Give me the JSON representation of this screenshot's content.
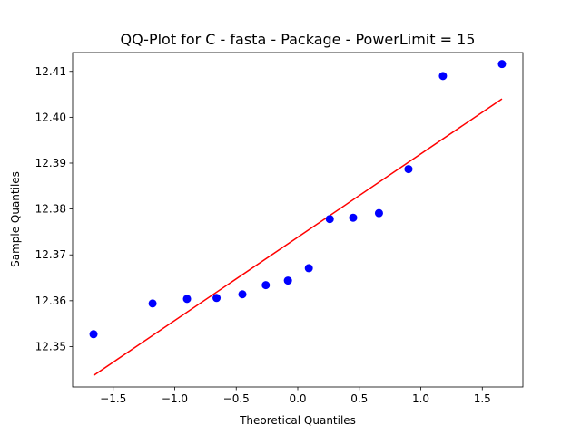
{
  "chart_data": {
    "type": "scatter",
    "title": "QQ-Plot for C - fasta - Package - PowerLimit = 15",
    "xlabel": "Theoretical Quantiles",
    "ylabel": "Sample Quantiles",
    "xlim": [
      -1.83,
      1.83
    ],
    "ylim": [
      12.3412,
      12.4141
    ],
    "xticks": [
      -1.5,
      -1.0,
      -0.5,
      0.0,
      0.5,
      1.0,
      1.5
    ],
    "xtick_labels": [
      "−1.5",
      "−1.0",
      "−0.5",
      "0.0",
      "0.5",
      "1.0",
      "1.5"
    ],
    "yticks": [
      12.35,
      12.36,
      12.37,
      12.38,
      12.39,
      12.4,
      12.41
    ],
    "ytick_labels": [
      "12.35",
      "12.36",
      "12.37",
      "12.38",
      "12.39",
      "12.40",
      "12.41"
    ],
    "grid": false,
    "points": {
      "color": "#0000ff",
      "x": [
        -1.66,
        -1.18,
        -0.9,
        -0.66,
        -0.45,
        -0.26,
        -0.08,
        0.09,
        0.26,
        0.45,
        0.66,
        0.9,
        1.18,
        1.66
      ],
      "y": [
        12.3527,
        12.3594,
        12.3604,
        12.3606,
        12.3614,
        12.3634,
        12.3644,
        12.3671,
        12.3778,
        12.3781,
        12.3791,
        12.3887,
        12.409,
        12.4116
      ]
    },
    "fit_line": {
      "color": "#ff0000",
      "x": [
        -1.66,
        1.66
      ],
      "y": [
        12.3437,
        12.404
      ]
    }
  }
}
